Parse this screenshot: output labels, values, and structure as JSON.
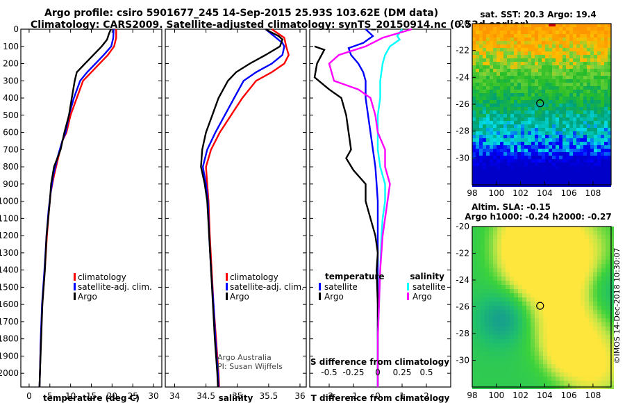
{
  "header": {
    "line1": "Argo profile: csiro 5901677_245 14-Sep-2015 25.93S 103.62E (DM data)",
    "line2": "Climatology: CARS2009. Satellite-adjusted climatology: synTS_20150914.nc (0.53d earlier)"
  },
  "colors": {
    "climatology": "#ff0000",
    "satellite_adj": "#0000ff",
    "argo": "#000000",
    "sat_salinity": "#00ffff",
    "argo_salinity_diff": "#ff00ff"
  },
  "chart_data": [
    {
      "id": "temperature",
      "type": "line",
      "xlabel": "temperature (deg C)",
      "ylabel": "",
      "xlim": [
        -2,
        32
      ],
      "xticks": [
        0,
        5,
        10,
        15,
        20,
        25,
        30
      ],
      "xtick_labels": [
        "0",
        "5",
        "10",
        "15",
        "20",
        "25",
        "30"
      ],
      "ylim": [
        0,
        2080
      ],
      "yticks": [
        0,
        100,
        200,
        300,
        400,
        500,
        600,
        700,
        800,
        900,
        1000,
        1100,
        1200,
        1300,
        1400,
        1500,
        1600,
        1700,
        1800,
        1900,
        2000
      ],
      "ytick_labels": [
        "0",
        "100",
        "200",
        "300",
        "400",
        "500",
        "600",
        "700",
        "800",
        "900",
        "1000",
        "1100",
        "1200",
        "1300",
        "1400",
        "1500",
        "1600",
        "1700",
        "1800",
        "1900",
        "2000"
      ],
      "legend": [
        "climatology",
        "satellite-adj. clim.",
        "Argo"
      ],
      "series": [
        {
          "name": "climatology",
          "color": "#ff0000",
          "points": [
            [
              21.0,
              0
            ],
            [
              21.0,
              50
            ],
            [
              20.5,
              100
            ],
            [
              19.0,
              150
            ],
            [
              17.0,
              200
            ],
            [
              15.0,
              250
            ],
            [
              13.0,
              300
            ],
            [
              11.5,
              400
            ],
            [
              10.0,
              500
            ],
            [
              9.0,
              600
            ],
            [
              8.0,
              650
            ],
            [
              7.0,
              750
            ],
            [
              6.0,
              850
            ],
            [
              5.2,
              950
            ],
            [
              4.8,
              1050
            ],
            [
              4.3,
              1200
            ],
            [
              3.8,
              1400
            ],
            [
              3.2,
              1600
            ],
            [
              2.8,
              1800
            ],
            [
              2.6,
              2000
            ],
            [
              2.5,
              2080
            ]
          ]
        },
        {
          "name": "satellite-adj. clim.",
          "color": "#0000ff",
          "points": [
            [
              20.4,
              0
            ],
            [
              20.3,
              50
            ],
            [
              19.8,
              100
            ],
            [
              18.0,
              150
            ],
            [
              16.0,
              200
            ],
            [
              14.0,
              250
            ],
            [
              12.3,
              300
            ],
            [
              10.8,
              400
            ],
            [
              9.6,
              500
            ],
            [
              8.8,
              600
            ],
            [
              8.0,
              650
            ],
            [
              6.8,
              750
            ],
            [
              5.8,
              850
            ],
            [
              5.2,
              950
            ],
            [
              4.7,
              1050
            ],
            [
              4.2,
              1200
            ],
            [
              3.7,
              1400
            ],
            [
              3.1,
              1600
            ],
            [
              2.8,
              1800
            ],
            [
              2.6,
              2000
            ],
            [
              2.5,
              2080
            ]
          ]
        },
        {
          "name": "Argo",
          "color": "#000000",
          "points": [
            [
              19.7,
              0
            ],
            [
              19.2,
              30
            ],
            [
              18.8,
              60
            ],
            [
              17.5,
              100
            ],
            [
              15.5,
              150
            ],
            [
              13.5,
              200
            ],
            [
              11.5,
              250
            ],
            [
              11.0,
              300
            ],
            [
              10.3,
              400
            ],
            [
              9.6,
              500
            ],
            [
              8.5,
              600
            ],
            [
              7.6,
              700
            ],
            [
              6.0,
              800
            ],
            [
              5.3,
              900
            ],
            [
              5.0,
              1000
            ],
            [
              4.6,
              1100
            ],
            [
              4.2,
              1200
            ],
            [
              3.8,
              1400
            ],
            [
              3.2,
              1600
            ],
            [
              2.9,
              1800
            ],
            [
              2.6,
              2000
            ],
            [
              2.5,
              2080
            ]
          ]
        }
      ]
    },
    {
      "id": "salinity",
      "type": "line",
      "xlabel": "salinity",
      "ylabel": "",
      "xlim": [
        33.85,
        36.1
      ],
      "xticks": [
        34,
        34.5,
        35,
        35.5,
        36
      ],
      "xtick_labels": [
        "34",
        "34.5",
        "35",
        "35.5",
        "36"
      ],
      "ylim": [
        0,
        2080
      ],
      "legend": [
        "climatology",
        "satellite-adj. clim.",
        "Argo"
      ],
      "annotations": [
        "Argo Australia",
        "PI: Susan Wijffels"
      ],
      "series": [
        {
          "name": "climatology",
          "color": "#ff0000",
          "points": [
            [
              35.55,
              0
            ],
            [
              35.75,
              50
            ],
            [
              35.78,
              100
            ],
            [
              35.82,
              150
            ],
            [
              35.75,
              200
            ],
            [
              35.55,
              250
            ],
            [
              35.3,
              300
            ],
            [
              35.08,
              400
            ],
            [
              34.9,
              500
            ],
            [
              34.72,
              600
            ],
            [
              34.58,
              700
            ],
            [
              34.5,
              800
            ],
            [
              34.52,
              900
            ],
            [
              34.54,
              1000
            ],
            [
              34.56,
              1200
            ],
            [
              34.59,
              1400
            ],
            [
              34.62,
              1600
            ],
            [
              34.66,
              1800
            ],
            [
              34.7,
              2000
            ],
            [
              34.71,
              2080
            ]
          ]
        },
        {
          "name": "satellite-adj. clim.",
          "color": "#0000ff",
          "points": [
            [
              35.45,
              0
            ],
            [
              35.62,
              50
            ],
            [
              35.72,
              80
            ],
            [
              35.75,
              100
            ],
            [
              35.72,
              150
            ],
            [
              35.55,
              200
            ],
            [
              35.3,
              250
            ],
            [
              35.1,
              300
            ],
            [
              34.95,
              400
            ],
            [
              34.8,
              500
            ],
            [
              34.65,
              600
            ],
            [
              34.52,
              700
            ],
            [
              34.45,
              800
            ],
            [
              34.5,
              900
            ],
            [
              34.53,
              1000
            ],
            [
              34.55,
              1200
            ],
            [
              34.58,
              1400
            ],
            [
              34.62,
              1600
            ],
            [
              34.65,
              1800
            ],
            [
              34.69,
              2000
            ],
            [
              34.7,
              2080
            ]
          ]
        },
        {
          "name": "Argo",
          "color": "#000000",
          "points": [
            [
              35.45,
              0
            ],
            [
              35.55,
              20
            ],
            [
              35.66,
              40
            ],
            [
              35.72,
              60
            ],
            [
              35.68,
              100
            ],
            [
              35.45,
              150
            ],
            [
              35.2,
              200
            ],
            [
              34.98,
              250
            ],
            [
              34.85,
              300
            ],
            [
              34.7,
              400
            ],
            [
              34.6,
              500
            ],
            [
              34.5,
              600
            ],
            [
              34.44,
              700
            ],
            [
              34.42,
              800
            ],
            [
              34.48,
              900
            ],
            [
              34.52,
              1000
            ],
            [
              34.55,
              1200
            ],
            [
              34.58,
              1400
            ],
            [
              34.61,
              1600
            ],
            [
              34.64,
              1800
            ],
            [
              34.68,
              2000
            ],
            [
              34.69,
              2080
            ]
          ]
        }
      ]
    },
    {
      "id": "differences",
      "type": "line",
      "xlabel": "T difference from climatology",
      "secondary_xlabel": "S difference from climatology",
      "xlim": [
        -2.8,
        3.0
      ],
      "xticks": [
        -2,
        -1,
        0,
        1,
        2
      ],
      "xtick_labels": [
        "-2",
        "-1",
        "0",
        "1",
        "2"
      ],
      "secondary_xticks": [
        -0.5,
        -0.25,
        0,
        0.25,
        0.5
      ],
      "secondary_xtick_labels": [
        "-0.5",
        "-0.25",
        "0",
        "0.25",
        "0.5"
      ],
      "ylim": [
        0,
        2080
      ],
      "legend_left_title": "temperature",
      "legend_right_title": "salinity",
      "legend_left": [
        "satellite",
        "Argo"
      ],
      "legend_right": [
        "satellite",
        "Argo"
      ],
      "series": [
        {
          "name": "temperature satellite",
          "color": "#0000ff",
          "points": [
            [
              -0.5,
              0
            ],
            [
              -0.2,
              40
            ],
            [
              -0.6,
              80
            ],
            [
              -1.2,
              110
            ],
            [
              -1.1,
              150
            ],
            [
              -0.8,
              200
            ],
            [
              -0.6,
              250
            ],
            [
              -0.5,
              300
            ],
            [
              -0.5,
              400
            ],
            [
              -0.4,
              500
            ],
            [
              -0.3,
              600
            ],
            [
              -0.2,
              700
            ],
            [
              -0.1,
              800
            ],
            [
              -0.05,
              900
            ],
            [
              0,
              1000
            ],
            [
              0,
              1200
            ],
            [
              0,
              1400
            ],
            [
              0,
              1600
            ],
            [
              0,
              1800
            ],
            [
              0,
              2000
            ],
            [
              0,
              2080
            ]
          ]
        },
        {
          "name": "temperature Argo",
          "color": "#000000",
          "points": [
            [
              -2.6,
              100
            ],
            [
              -2.2,
              120
            ],
            [
              -2.5,
              200
            ],
            [
              -2.6,
              280
            ],
            [
              -2.0,
              350
            ],
            [
              -1.5,
              400
            ],
            [
              -1.3,
              500
            ],
            [
              -1.2,
              600
            ],
            [
              -1.1,
              700
            ],
            [
              -1.3,
              750
            ],
            [
              -1.0,
              820
            ],
            [
              -0.5,
              900
            ],
            [
              -0.5,
              1000
            ],
            [
              -0.3,
              1100
            ],
            [
              -0.1,
              1200
            ],
            [
              0,
              1300
            ],
            [
              -0.05,
              1400
            ],
            [
              0,
              1600
            ],
            [
              0,
              1800
            ],
            [
              0,
              2000
            ],
            [
              0,
              2080
            ]
          ]
        },
        {
          "name": "salinity satellite",
          "color": "#00ffff",
          "points": [
            [
              1.0,
              0
            ],
            [
              0.8,
              40
            ],
            [
              0.9,
              60
            ],
            [
              0.5,
              100
            ],
            [
              0.3,
              150
            ],
            [
              0.2,
              200
            ],
            [
              0.1,
              300
            ],
            [
              0.1,
              400
            ],
            [
              0.0,
              500
            ],
            [
              0.0,
              600
            ],
            [
              0.0,
              700
            ],
            [
              0.1,
              800
            ],
            [
              0.3,
              900
            ],
            [
              0.3,
              1000
            ],
            [
              0.2,
              1100
            ],
            [
              0.15,
              1200
            ],
            [
              0.1,
              1400
            ],
            [
              0.05,
              1600
            ],
            [
              0.0,
              1800
            ],
            [
              0.0,
              2000
            ],
            [
              0.0,
              2080
            ]
          ]
        },
        {
          "name": "salinity Argo",
          "color": "#ff00ff",
          "points": [
            [
              1.4,
              0
            ],
            [
              0.2,
              50
            ],
            [
              -0.5,
              100
            ],
            [
              -1.6,
              150
            ],
            [
              -2.0,
              200
            ],
            [
              -1.8,
              300
            ],
            [
              -0.8,
              350
            ],
            [
              -0.3,
              400
            ],
            [
              -0.1,
              500
            ],
            [
              0.0,
              600
            ],
            [
              0.3,
              700
            ],
            [
              0.3,
              800
            ],
            [
              0.5,
              900
            ],
            [
              0.4,
              1000
            ],
            [
              0.2,
              1200
            ],
            [
              0.1,
              1400
            ],
            [
              0.05,
              1600
            ],
            [
              0.0,
              1800
            ],
            [
              0.0,
              2000
            ],
            [
              0.0,
              2080
            ]
          ]
        }
      ]
    },
    {
      "id": "sst-map",
      "type": "heatmap",
      "title": "sat. SST: 20.3 Argo: 19.4",
      "xlim": [
        98,
        109.5
      ],
      "ylim": [
        -32,
        -20
      ],
      "xticks": [
        98,
        100,
        102,
        104,
        106,
        108
      ],
      "xtick_labels": [
        "98",
        "100",
        "102",
        "104",
        "106",
        "108"
      ],
      "yticks": [
        -20,
        -22,
        -24,
        -26,
        -28,
        -30
      ],
      "ytick_labels": [
        "-20",
        "-22",
        "-24",
        "-26",
        "-28",
        "-30"
      ],
      "marker": {
        "lon": 103.62,
        "lat": -25.93
      }
    },
    {
      "id": "sla-map",
      "type": "heatmap",
      "title": "Altim. SLA: -0.15",
      "subtitle": "Argo h1000: -0.24 h2000: -0.27",
      "xlim": [
        98,
        109.5
      ],
      "ylim": [
        -32,
        -20
      ],
      "xticks": [
        98,
        100,
        102,
        104,
        106,
        108
      ],
      "xtick_labels": [
        "98",
        "100",
        "102",
        "104",
        "106",
        "108"
      ],
      "yticks": [
        -20,
        -22,
        -24,
        -26,
        -28,
        -30
      ],
      "ytick_labels": [
        "-20",
        "-22",
        "-24",
        "-26",
        "-28",
        "-30"
      ],
      "marker": {
        "lon": 103.62,
        "lat": -25.93
      },
      "side_label": "©IMOS 14-Dec-2018 10:30:07"
    }
  ]
}
